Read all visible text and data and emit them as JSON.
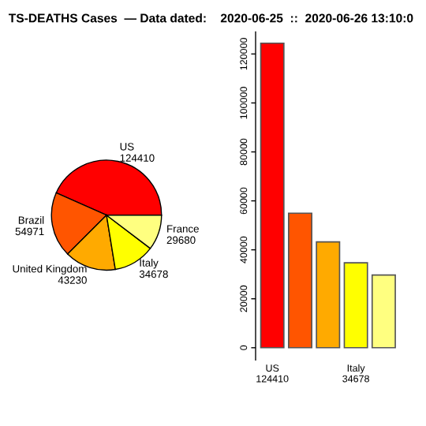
{
  "chart_data": [
    {
      "type": "pie",
      "title": "TS-DEATHS Cases  — Data dated:    2020-06-25  ::  2020-06-26 13:10:0",
      "categories": [
        "US\n124410",
        "Brazil\n54971",
        "United Kingdom\n43230",
        "Italy\n34678",
        "France\n29680"
      ],
      "values": [
        124410,
        54971,
        43230,
        34678,
        29680
      ],
      "colors": [
        "#ff0000",
        "#ff5500",
        "#ffaa00",
        "#ffff00",
        "#ffff80"
      ]
    },
    {
      "type": "bar",
      "categories": [
        "US\n124410",
        null,
        null,
        "Italy\n34678",
        null
      ],
      "values": [
        124410,
        54971,
        43230,
        34678,
        29680
      ],
      "colors": [
        "#ff0000",
        "#ff5500",
        "#ffaa00",
        "#ffff00",
        "#ffff80"
      ],
      "ylim": [
        -5000,
        129000
      ],
      "yticks": [
        0,
        20000,
        40000,
        60000,
        80000,
        100000,
        120000
      ],
      "grid": false
    }
  ]
}
